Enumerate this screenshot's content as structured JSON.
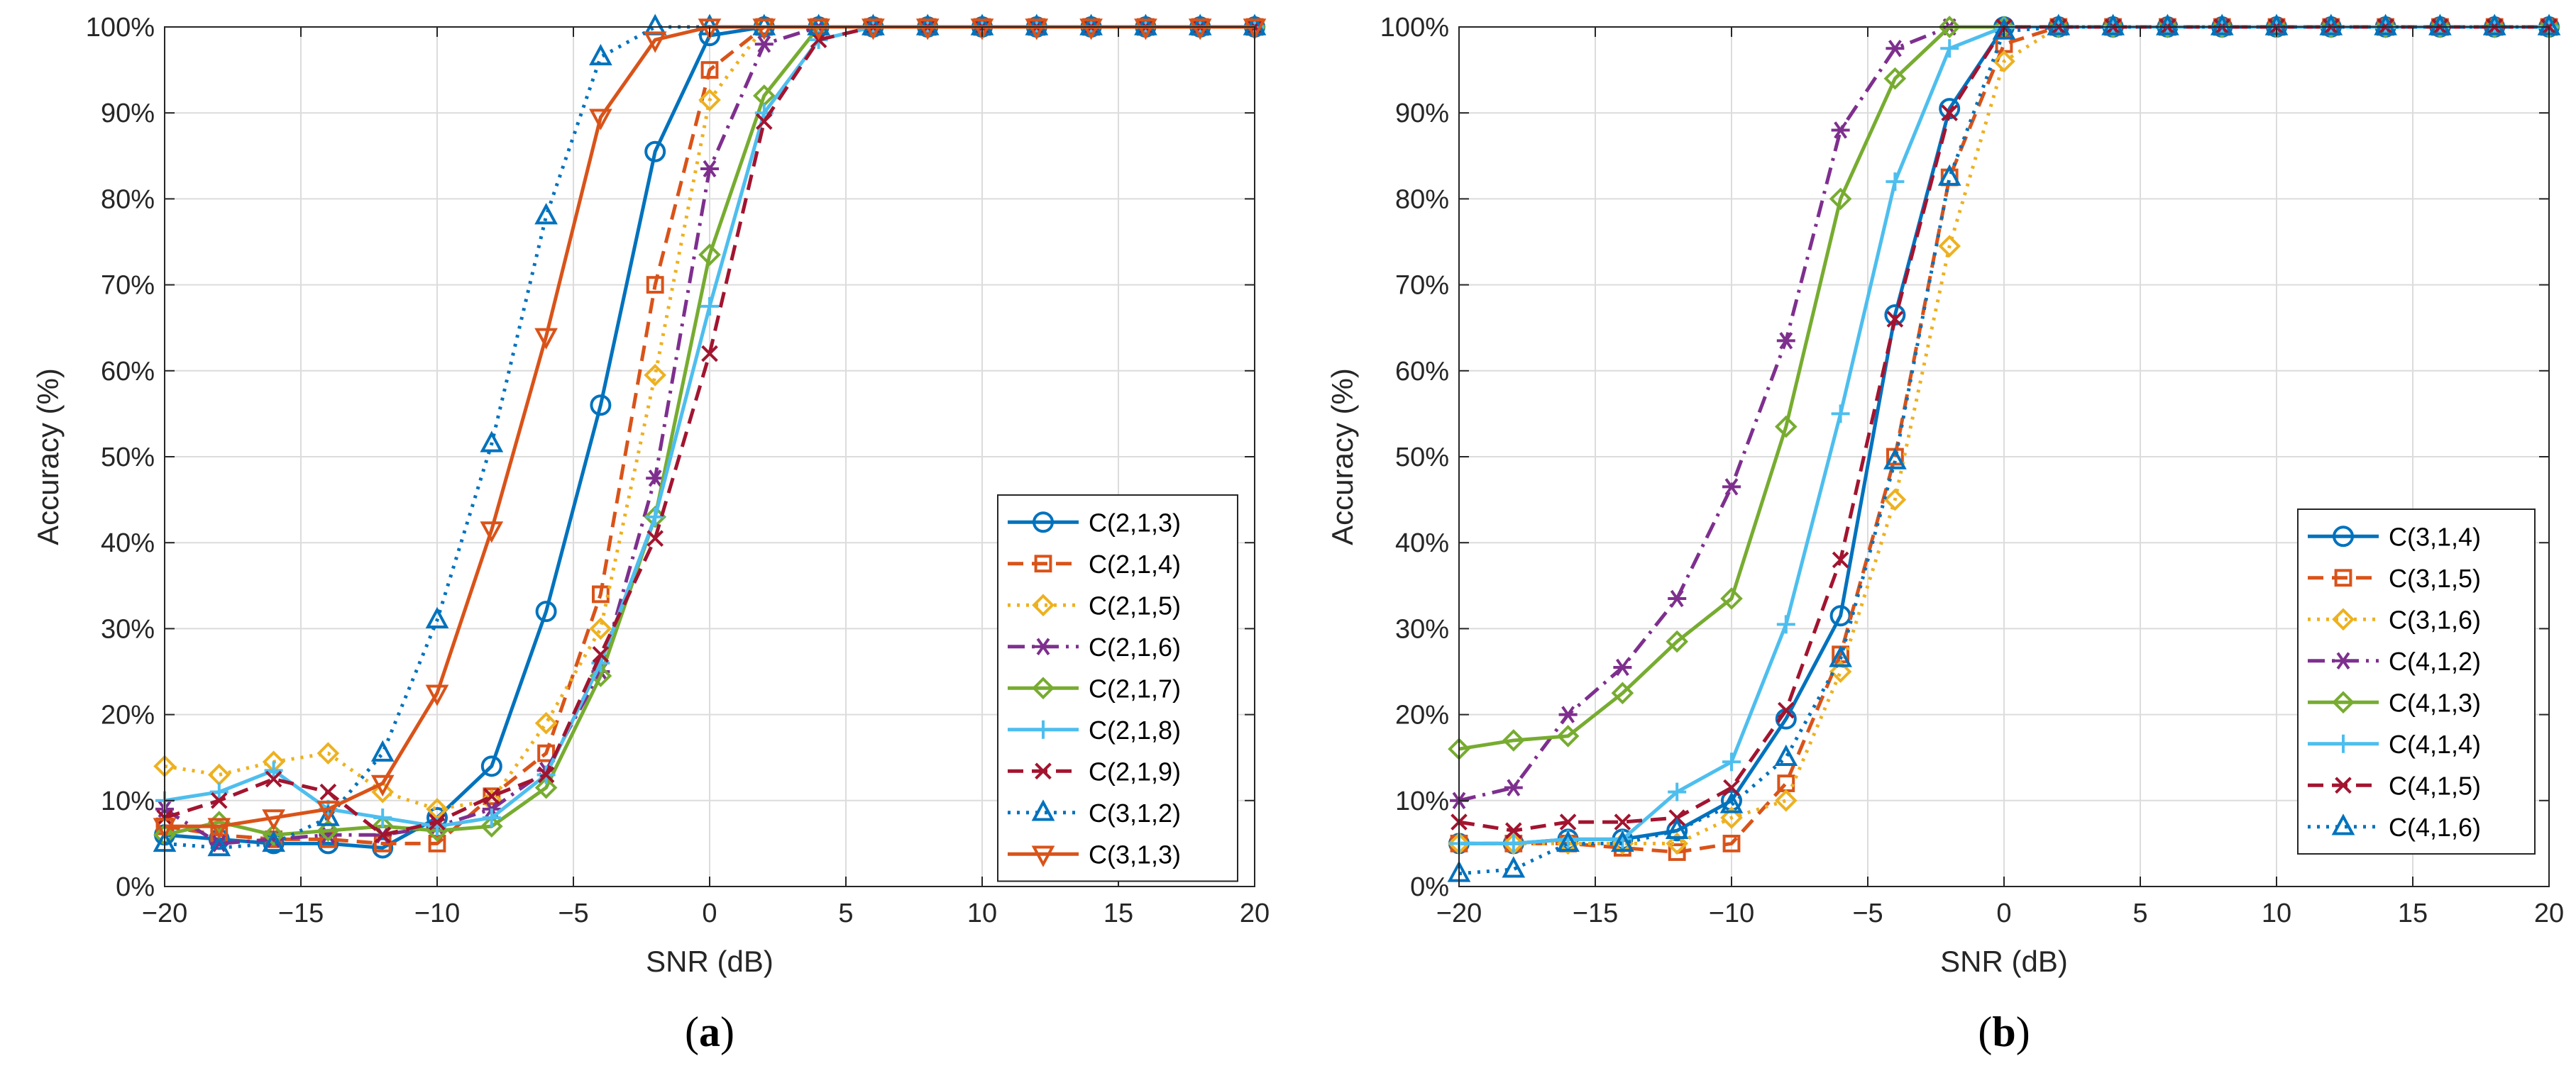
{
  "chart_data": [
    {
      "type": "line",
      "panel_label": "(a)",
      "xlabel": "SNR (dB)",
      "ylabel": "Accuracy (%)",
      "xlim": [
        -20,
        20
      ],
      "ylim": [
        0,
        100
      ],
      "xticks": [
        -20,
        -15,
        -10,
        -5,
        0,
        5,
        10,
        15,
        20
      ],
      "xtick_labels": [
        "−20",
        "−15",
        "−10",
        "−5",
        "0",
        "5",
        "10",
        "15",
        "20"
      ],
      "yticks": [
        0,
        10,
        20,
        30,
        40,
        50,
        60,
        70,
        80,
        90,
        100
      ],
      "ytick_labels": [
        "0%",
        "10%",
        "20%",
        "30%",
        "40%",
        "50%",
        "60%",
        "70%",
        "80%",
        "90%",
        "100%"
      ],
      "grid": true,
      "legend_position": "bottom-right",
      "x": [
        -20,
        -18,
        -16,
        -14,
        -12,
        -10,
        -8,
        -6,
        -4,
        -2,
        0,
        2,
        4,
        6,
        8,
        10,
        12,
        14,
        16,
        18,
        20
      ],
      "series": [
        {
          "name": "C(2,1,3)",
          "color": "#0072BD",
          "dash": "solid",
          "marker": "circle",
          "values": [
            6,
            5.5,
            5,
            5,
            4.5,
            8,
            14,
            32,
            56,
            85.5,
            99,
            100,
            100,
            100,
            100,
            100,
            100,
            100,
            100,
            100,
            100
          ]
        },
        {
          "name": "C(2,1,4)",
          "color": "#D95319",
          "dash": "dashed",
          "marker": "square",
          "values": [
            7,
            6,
            5.5,
            5.5,
            5,
            5,
            10.5,
            15.5,
            34,
            70,
            95,
            100,
            100,
            100,
            100,
            100,
            100,
            100,
            100,
            100,
            100
          ]
        },
        {
          "name": "C(2,1,5)",
          "color": "#EDB120",
          "dash": "dotted",
          "marker": "diamond",
          "values": [
            14,
            13,
            14.5,
            15.5,
            11,
            9,
            10,
            19,
            30,
            59.5,
            91.5,
            100,
            100,
            100,
            100,
            100,
            100,
            100,
            100,
            100,
            100
          ]
        },
        {
          "name": "C(2,1,6)",
          "color": "#7E2F8E",
          "dash": "dashdot",
          "marker": "asterisk",
          "values": [
            9,
            5,
            5.5,
            6,
            6,
            7,
            9,
            13.5,
            25,
            47.5,
            83.5,
            98,
            100,
            100,
            100,
            100,
            100,
            100,
            100,
            100,
            100
          ]
        },
        {
          "name": "C(2,1,7)",
          "color": "#77AC30",
          "dash": "solid",
          "marker": "diamond",
          "values": [
            6,
            7.5,
            6,
            6.5,
            7,
            6.5,
            7,
            11.5,
            24.5,
            43,
            73.5,
            92,
            100,
            100,
            100,
            100,
            100,
            100,
            100,
            100,
            100
          ]
        },
        {
          "name": "C(2,1,8)",
          "color": "#4DBEEE",
          "dash": "solid",
          "marker": "plus",
          "values": [
            10,
            11,
            13.5,
            9,
            8,
            7,
            8,
            13,
            26,
            43,
            67.5,
            90,
            98.5,
            100,
            100,
            100,
            100,
            100,
            100,
            100,
            100
          ]
        },
        {
          "name": "C(2,1,9)",
          "color": "#A2142F",
          "dash": "dashed",
          "marker": "x",
          "values": [
            8,
            10,
            12.5,
            11,
            6,
            7.5,
            10.5,
            13,
            27,
            40.5,
            62,
            89,
            98.5,
            100,
            100,
            100,
            100,
            100,
            100,
            100,
            100
          ]
        },
        {
          "name": "C(3,1,2)",
          "color": "#0072BD",
          "dash": "dotted",
          "marker": "triangle-up",
          "values": [
            5,
            4.5,
            5,
            8,
            15.5,
            31,
            51.5,
            78,
            96.5,
            100,
            100,
            100,
            100,
            100,
            100,
            100,
            100,
            100,
            100,
            100,
            100
          ]
        },
        {
          "name": "C(3,1,3)",
          "color": "#D95319",
          "dash": "solid",
          "marker": "triangle-down",
          "values": [
            7,
            7,
            8,
            9,
            12,
            22.5,
            41.5,
            64,
            89.5,
            98.5,
            100,
            100,
            100,
            100,
            100,
            100,
            100,
            100,
            100,
            100,
            100
          ]
        }
      ]
    },
    {
      "type": "line",
      "panel_label": "(b)",
      "xlabel": "SNR (dB)",
      "ylabel": "Accuracy (%)",
      "xlim": [
        -20,
        20
      ],
      "ylim": [
        0,
        100
      ],
      "xticks": [
        -20,
        -15,
        -10,
        -5,
        0,
        5,
        10,
        15,
        20
      ],
      "xtick_labels": [
        "−20",
        "−15",
        "−10",
        "−5",
        "0",
        "5",
        "10",
        "15",
        "20"
      ],
      "yticks": [
        0,
        10,
        20,
        30,
        40,
        50,
        60,
        70,
        80,
        90,
        100
      ],
      "ytick_labels": [
        "0%",
        "10%",
        "20%",
        "30%",
        "40%",
        "50%",
        "60%",
        "70%",
        "80%",
        "90%",
        "100%"
      ],
      "grid": true,
      "legend_position": "bottom-right",
      "x": [
        -20,
        -18,
        -16,
        -14,
        -12,
        -10,
        -8,
        -6,
        -4,
        -2,
        0,
        2,
        4,
        6,
        8,
        10,
        12,
        14,
        16,
        18,
        20
      ],
      "series": [
        {
          "name": "C(3,1,4)",
          "color": "#0072BD",
          "dash": "solid",
          "marker": "circle",
          "values": [
            5,
            5,
            5.5,
            5.5,
            6.5,
            10,
            19.5,
            31.5,
            66.5,
            90.5,
            100,
            100,
            100,
            100,
            100,
            100,
            100,
            100,
            100,
            100,
            100
          ]
        },
        {
          "name": "C(3,1,5)",
          "color": "#D95319",
          "dash": "dashed",
          "marker": "square",
          "values": [
            5,
            5,
            5,
            4.5,
            4,
            5,
            12,
            27,
            50,
            82.5,
            98,
            100,
            100,
            100,
            100,
            100,
            100,
            100,
            100,
            100,
            100
          ]
        },
        {
          "name": "C(3,1,6)",
          "color": "#EDB120",
          "dash": "dotted",
          "marker": "diamond",
          "values": [
            5,
            5,
            5,
            5,
            5,
            8,
            10,
            25,
            45,
            74.5,
            96,
            100,
            100,
            100,
            100,
            100,
            100,
            100,
            100,
            100,
            100
          ]
        },
        {
          "name": "C(4,1,2)",
          "color": "#7E2F8E",
          "dash": "dashdot",
          "marker": "asterisk",
          "values": [
            10,
            11.5,
            20,
            25.5,
            33.5,
            46.5,
            63.5,
            88,
            97.5,
            100,
            100,
            100,
            100,
            100,
            100,
            100,
            100,
            100,
            100,
            100,
            100
          ]
        },
        {
          "name": "C(4,1,3)",
          "color": "#77AC30",
          "dash": "solid",
          "marker": "diamond",
          "values": [
            16,
            17,
            17.5,
            22.5,
            28.5,
            33.5,
            53.5,
            80,
            94,
            100,
            100,
            100,
            100,
            100,
            100,
            100,
            100,
            100,
            100,
            100,
            100
          ]
        },
        {
          "name": "C(4,1,4)",
          "color": "#4DBEEE",
          "dash": "solid",
          "marker": "plus",
          "values": [
            5,
            5,
            5.5,
            5.5,
            11,
            14.5,
            30.5,
            55,
            82,
            97.5,
            100,
            100,
            100,
            100,
            100,
            100,
            100,
            100,
            100,
            100,
            100
          ]
        },
        {
          "name": "C(4,1,5)",
          "color": "#A2142F",
          "dash": "dashed",
          "marker": "x",
          "values": [
            7.5,
            6.5,
            7.5,
            7.5,
            8,
            11.5,
            20.5,
            38,
            66,
            90,
            100,
            100,
            100,
            100,
            100,
            100,
            100,
            100,
            100,
            100,
            100
          ]
        },
        {
          "name": "C(4,1,6)",
          "color": "#0072BD",
          "dash": "dotted",
          "marker": "triangle-up",
          "values": [
            1.5,
            2,
            5,
            5,
            6.5,
            9.5,
            15,
            26.5,
            49.5,
            82.5,
            99.5,
            100,
            100,
            100,
            100,
            100,
            100,
            100,
            100,
            100,
            100
          ]
        }
      ]
    }
  ]
}
